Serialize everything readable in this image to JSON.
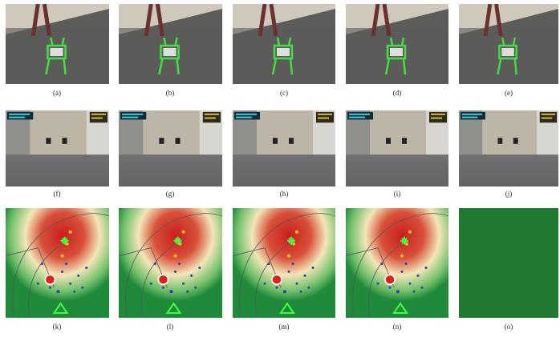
{
  "panel_labels": [
    "(a)",
    "(b)",
    "(c)",
    "(d)",
    "(e)",
    "(f)",
    "(g)",
    "(h)",
    "(i)",
    "(j)",
    "(k)",
    "(l)",
    "(m)",
    "(n)",
    "(o)"
  ]
}
